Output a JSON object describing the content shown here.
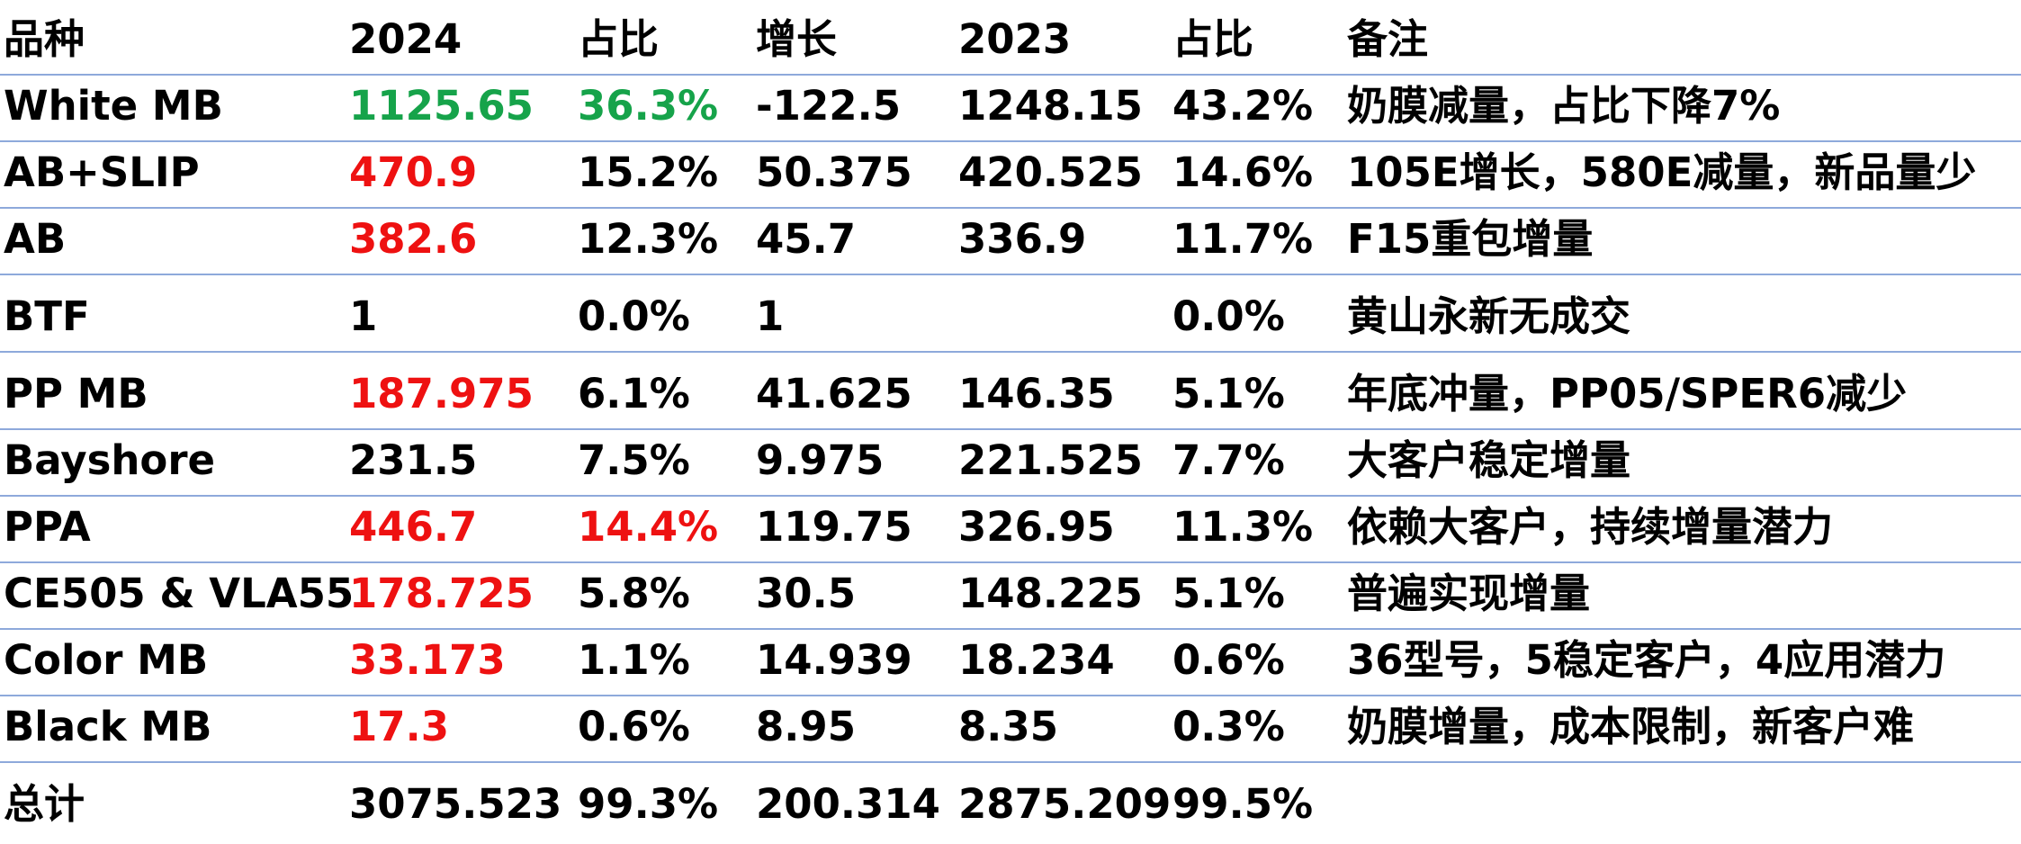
{
  "colors": {
    "highlight_up": "#ee1111",
    "highlight_green": "#16a34a",
    "rule_line": "#8ea9db"
  },
  "headers": [
    "品种",
    "2024",
    "占比",
    "增长",
    "2023",
    "占比",
    "备注"
  ],
  "rows": [
    {
      "name": "White MB",
      "v2024": "1125.65",
      "pct2024": "36.3%",
      "growth": "-122.5",
      "v2023": "1248.15",
      "pct2023": "43.2%",
      "note": "奶膜减量，占比下降7%",
      "v2024_color": "green",
      "pct2024_color": "green"
    },
    {
      "name": "AB+SLIP",
      "v2024": "470.9",
      "pct2024": "15.2%",
      "growth": "50.375",
      "v2023": "420.525",
      "pct2023": "14.6%",
      "note": "105E增长，580E减量，新品量少",
      "v2024_color": "red",
      "pct2024_color": ""
    },
    {
      "name": "AB",
      "v2024": "382.6",
      "pct2024": "12.3%",
      "growth": "45.7",
      "v2023": "336.9",
      "pct2023": "11.7%",
      "note": "F15重包增量",
      "v2024_color": "red",
      "pct2024_color": ""
    },
    {
      "name": "BTF",
      "v2024": "1",
      "pct2024": "0.0%",
      "growth": "1",
      "v2023": "",
      "pct2023": "0.0%",
      "note": "黄山永新无成交",
      "v2024_color": "",
      "pct2024_color": ""
    },
    {
      "name": "PP MB",
      "v2024": "187.975",
      "pct2024": "6.1%",
      "growth": "41.625",
      "v2023": "146.35",
      "pct2023": "5.1%",
      "note": "年底冲量，PP05/SPER6减少",
      "v2024_color": "red",
      "pct2024_color": ""
    },
    {
      "name": "Bayshore",
      "v2024": "231.5",
      "pct2024": "7.5%",
      "growth": "9.975",
      "v2023": "221.525",
      "pct2023": "7.7%",
      "note": "大客户稳定增量",
      "v2024_color": "",
      "pct2024_color": ""
    },
    {
      "name": "PPA",
      "v2024": "446.7",
      "pct2024": "14.4%",
      "growth": "119.75",
      "v2023": "326.95",
      "pct2023": "11.3%",
      "note": "依赖大客户，持续增量潜力",
      "v2024_color": "red",
      "pct2024_color": "red"
    },
    {
      "name": "CE505 & VLA55",
      "v2024": "178.725",
      "pct2024": "5.8%",
      "growth": "30.5",
      "v2023": "148.225",
      "pct2023": "5.1%",
      "note": "普遍实现增量",
      "v2024_color": "red",
      "pct2024_color": ""
    },
    {
      "name": "Color MB",
      "v2024": "33.173",
      "pct2024": "1.1%",
      "growth": "14.939",
      "v2023": "18.234",
      "pct2023": "0.6%",
      "note": "36型号，5稳定客户，4应用潜力",
      "v2024_color": "red",
      "pct2024_color": ""
    },
    {
      "name": "Black MB",
      "v2024": "17.3",
      "pct2024": "0.6%",
      "growth": "8.95",
      "v2023": "8.35",
      "pct2023": "0.3%",
      "note": "奶膜增量，成本限制，新客户难",
      "v2024_color": "red",
      "pct2024_color": ""
    },
    {
      "name": "总计",
      "v2024": "3075.523",
      "pct2024": "99.3%",
      "growth": "200.314",
      "v2023": "2875.209",
      "pct2023": "99.5%",
      "note": "",
      "v2024_color": "",
      "pct2024_color": ""
    }
  ]
}
